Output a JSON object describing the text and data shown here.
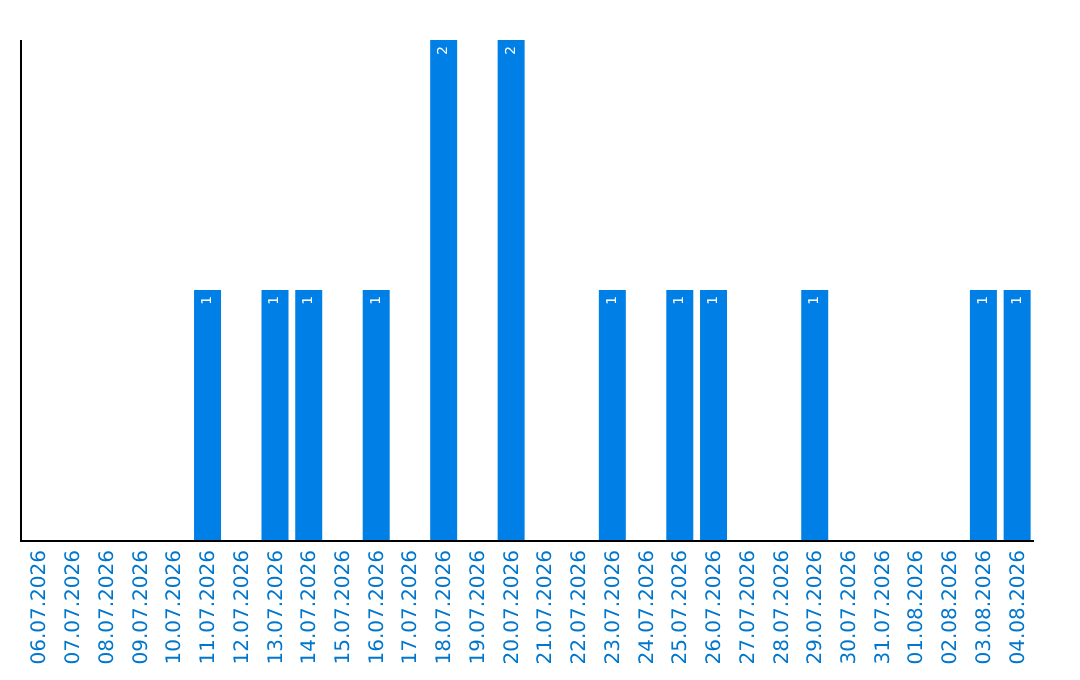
{
  "chart_data": {
    "type": "bar",
    "categories": [
      "06.07.2026",
      "07.07.2026",
      "08.07.2026",
      "09.07.2026",
      "10.07.2026",
      "11.07.2026",
      "12.07.2026",
      "13.07.2026",
      "14.07.2026",
      "15.07.2026",
      "16.07.2026",
      "17.07.2026",
      "18.07.2026",
      "19.07.2026",
      "20.07.2026",
      "21.07.2026",
      "22.07.2026",
      "23.07.2026",
      "24.07.2026",
      "25.07.2026",
      "26.07.2026",
      "27.07.2026",
      "28.07.2026",
      "29.07.2026",
      "30.07.2026",
      "31.07.2026",
      "01.08.2026",
      "02.08.2026",
      "03.08.2026",
      "04.08.2026"
    ],
    "values": [
      0,
      0,
      0,
      0,
      0,
      1,
      0,
      1,
      1,
      0,
      1,
      0,
      2,
      0,
      2,
      0,
      0,
      1,
      0,
      1,
      1,
      0,
      0,
      1,
      0,
      0,
      0,
      0,
      1,
      1
    ],
    "value_labels": [
      null,
      null,
      null,
      null,
      null,
      "1",
      null,
      "1",
      "1",
      null,
      "1",
      null,
      "2",
      null,
      "2",
      null,
      null,
      "1",
      null,
      "1",
      "1",
      null,
      null,
      "1",
      null,
      null,
      null,
      null,
      "1",
      "1"
    ],
    "color": "#0080e6",
    "ylim": [
      0,
      2
    ],
    "tick_labels": "x"
  }
}
